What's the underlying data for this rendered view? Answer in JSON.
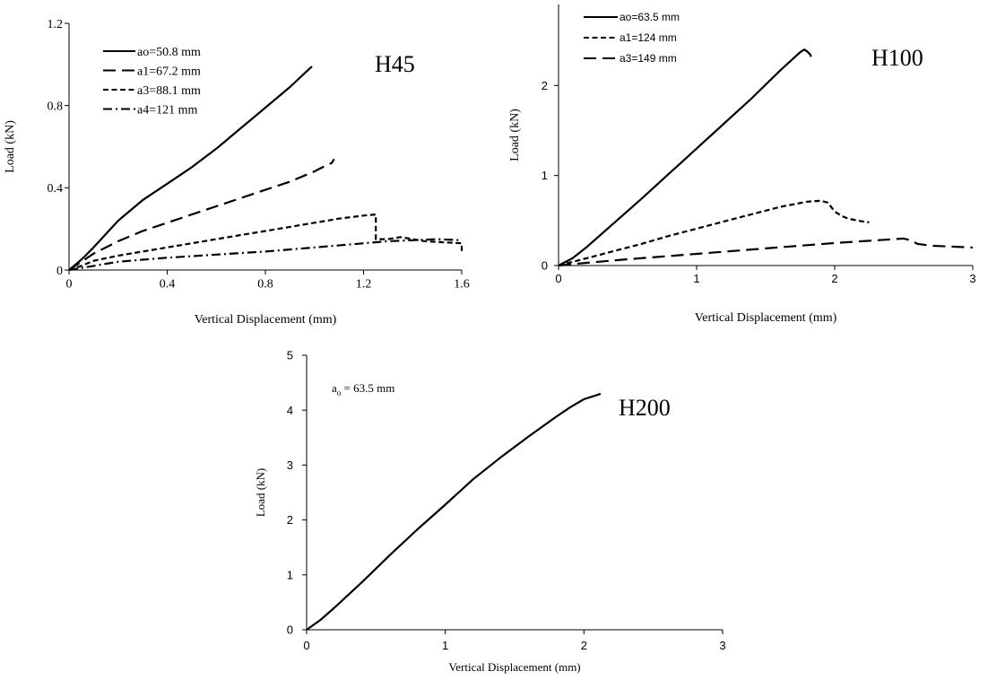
{
  "chart_data": [
    {
      "type": "line",
      "title": "H45",
      "xlabel": "Vertical Displacement (mm)",
      "ylabel": "Load (kN)",
      "xlim": [
        0,
        1.6
      ],
      "ylim": [
        0,
        1.2
      ],
      "xticks": [
        0,
        0.4,
        0.8,
        1.2,
        1.6
      ],
      "yticks": [
        0,
        0.4,
        0.8,
        1.2
      ],
      "xtick_labels": [
        "0",
        "0.4",
        "0.8",
        "1.2",
        "1.6"
      ],
      "ytick_labels": [
        "0",
        "0.4",
        "0.8",
        "1.2"
      ],
      "legend_position": "top-left",
      "series": [
        {
          "name": "ao=50.8 mm",
          "style": "solid",
          "x": [
            0,
            0.05,
            0.1,
            0.2,
            0.3,
            0.4,
            0.5,
            0.6,
            0.7,
            0.8,
            0.9,
            0.98,
            0.99
          ],
          "y": [
            0,
            0.05,
            0.11,
            0.24,
            0.34,
            0.42,
            0.5,
            0.59,
            0.69,
            0.79,
            0.89,
            0.98,
            0.99
          ]
        },
        {
          "name": "a1=67.2 mm",
          "style": "longdash",
          "x": [
            0,
            0.05,
            0.1,
            0.2,
            0.3,
            0.4,
            0.5,
            0.6,
            0.7,
            0.8,
            0.9,
            1.0,
            1.05,
            1.07,
            1.08
          ],
          "y": [
            0,
            0.04,
            0.08,
            0.14,
            0.19,
            0.23,
            0.27,
            0.31,
            0.35,
            0.39,
            0.43,
            0.48,
            0.51,
            0.52,
            0.54
          ]
        },
        {
          "name": "a3=88.1 mm",
          "style": "shortdash",
          "x": [
            0,
            0.05,
            0.1,
            0.2,
            0.3,
            0.4,
            0.5,
            0.6,
            0.7,
            0.8,
            0.9,
            1.0,
            1.1,
            1.2,
            1.25,
            1.25,
            1.3,
            1.35,
            1.45,
            1.6,
            1.6
          ],
          "y": [
            0,
            0.02,
            0.045,
            0.07,
            0.09,
            0.11,
            0.13,
            0.15,
            0.17,
            0.19,
            0.21,
            0.23,
            0.25,
            0.265,
            0.27,
            0.15,
            0.15,
            0.16,
            0.14,
            0.13,
            0.09
          ]
        },
        {
          "name": "a4=121 mm",
          "style": "dashdot",
          "x": [
            0,
            0.05,
            0.1,
            0.2,
            0.3,
            0.4,
            0.6,
            0.8,
            1.0,
            1.2,
            1.3,
            1.4,
            1.5,
            1.6
          ],
          "y": [
            0,
            0.01,
            0.02,
            0.04,
            0.05,
            0.06,
            0.075,
            0.09,
            0.11,
            0.13,
            0.14,
            0.145,
            0.15,
            0.145
          ]
        }
      ]
    },
    {
      "type": "line",
      "title": "H100",
      "xlabel": "Vertical Displacement (mm)",
      "ylabel": "Load (kN)",
      "xlim": [
        0,
        3
      ],
      "ylim": [
        0,
        2.9
      ],
      "xticks": [
        0,
        1,
        2,
        3
      ],
      "yticks": [
        0,
        1,
        2
      ],
      "xtick_labels": [
        "0",
        "1",
        "2",
        "3"
      ],
      "ytick_labels": [
        "0",
        "1",
        "2"
      ],
      "legend_position": "top-left",
      "series": [
        {
          "name": "ao=63.5 mm",
          "style": "solid",
          "x": [
            0,
            0.1,
            0.2,
            0.4,
            0.6,
            0.8,
            1.0,
            1.2,
            1.4,
            1.6,
            1.7,
            1.75,
            1.78,
            1.8,
            1.82,
            1.83
          ],
          "y": [
            0,
            0.08,
            0.2,
            0.47,
            0.74,
            1.02,
            1.3,
            1.58,
            1.86,
            2.16,
            2.3,
            2.37,
            2.4,
            2.38,
            2.35,
            2.32
          ]
        },
        {
          "name": "a1=124 mm",
          "style": "shortdash",
          "x": [
            0,
            0.2,
            0.4,
            0.6,
            0.8,
            1.0,
            1.2,
            1.4,
            1.6,
            1.8,
            1.9,
            1.95,
            2.0,
            2.05,
            2.1,
            2.2,
            2.25
          ],
          "y": [
            0,
            0.08,
            0.16,
            0.24,
            0.33,
            0.41,
            0.49,
            0.57,
            0.65,
            0.71,
            0.72,
            0.7,
            0.6,
            0.55,
            0.52,
            0.49,
            0.48
          ]
        },
        {
          "name": "a3=149 mm",
          "style": "longdash",
          "x": [
            0,
            0.2,
            0.5,
            1.0,
            1.5,
            2.0,
            2.3,
            2.5,
            2.55,
            2.6,
            2.7,
            3.0
          ],
          "y": [
            0,
            0.03,
            0.07,
            0.13,
            0.19,
            0.25,
            0.28,
            0.3,
            0.28,
            0.24,
            0.22,
            0.2
          ]
        }
      ]
    },
    {
      "type": "line",
      "title": "H200",
      "xlabel": "Vertical Displacement (mm)",
      "ylabel": "Load (kN)",
      "xlim": [
        0,
        3
      ],
      "ylim": [
        0,
        5
      ],
      "xticks": [
        0,
        1,
        2,
        3
      ],
      "yticks": [
        0,
        1,
        2,
        3,
        4,
        5
      ],
      "xtick_labels": [
        "0",
        "1",
        "2",
        "3"
      ],
      "ytick_labels": [
        "0",
        "1",
        "2",
        "3",
        "4",
        "5"
      ],
      "annotation": {
        "main": "a",
        "sub": "o",
        "tail": " = 63.5 mm"
      },
      "series": [
        {
          "name": "ao=63.5 mm",
          "style": "solid",
          "x": [
            0,
            0.1,
            0.2,
            0.4,
            0.6,
            0.8,
            1.0,
            1.2,
            1.4,
            1.6,
            1.8,
            1.9,
            2.0,
            2.1,
            2.12
          ],
          "y": [
            0,
            0.18,
            0.4,
            0.87,
            1.36,
            1.83,
            2.28,
            2.74,
            3.14,
            3.52,
            3.88,
            4.05,
            4.2,
            4.28,
            4.3
          ]
        }
      ]
    }
  ]
}
